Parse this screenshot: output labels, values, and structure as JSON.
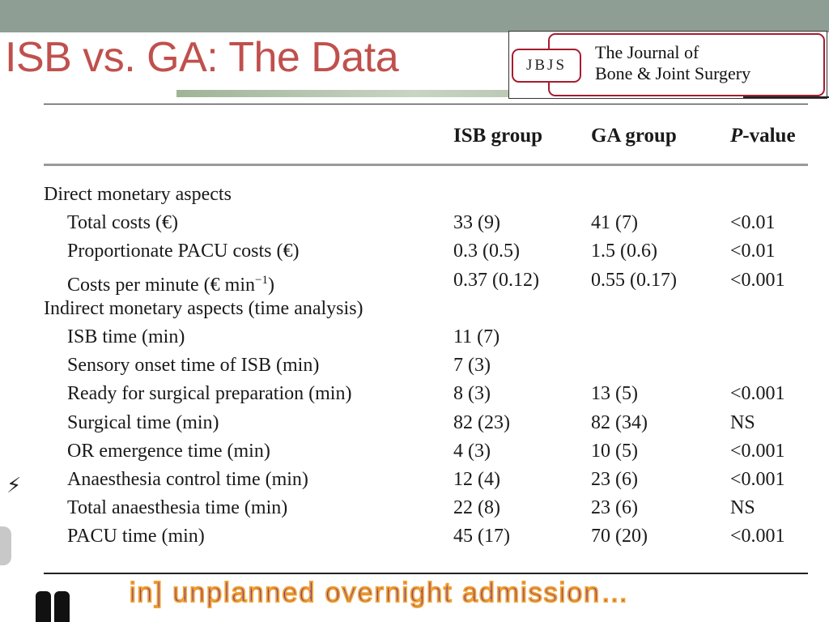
{
  "slide": {
    "title": "ISB vs. GA: The Data",
    "colors": {
      "title": "#c0504d",
      "top_bar": "#8e9e95",
      "logo_red": "#a61c2e",
      "caption": "#7030a0"
    }
  },
  "journal_logo": {
    "badge": "JBJS",
    "name_line1": "The Journal of",
    "name_line2": "Bone & Joint Surgery"
  },
  "table": {
    "headers": {
      "isb": "ISB group",
      "ga": "GA group",
      "p_italic": "P",
      "p_rest": "-value"
    },
    "rows": [
      {
        "label": "Direct monetary aspects",
        "isb": "",
        "ga": "",
        "p": "",
        "section": true
      },
      {
        "label": "Total costs (€)",
        "isb": "33 (9)",
        "ga": "41 (7)",
        "p": "<0.01"
      },
      {
        "label": "Proportionate PACU costs (€)",
        "isb": "0.3 (0.5)",
        "ga": "1.5 (0.6)",
        "p": "<0.01"
      },
      {
        "label": "Costs per minute (€ min",
        "sup": "−1",
        "label_end": ")",
        "isb": "0.37 (0.12)",
        "ga": "0.55 (0.17)",
        "p": "<0.001"
      },
      {
        "label": "Indirect monetary aspects (time analysis)",
        "isb": "",
        "ga": "",
        "p": "",
        "section": true
      },
      {
        "label": "ISB time (min)",
        "isb": "11 (7)",
        "ga": "",
        "p": ""
      },
      {
        "label": "Sensory onset time of ISB (min)",
        "isb": "7 (3)",
        "ga": "",
        "p": ""
      },
      {
        "label": "Ready for surgical preparation (min)",
        "isb": "8 (3)",
        "ga": "13 (5)",
        "p": "<0.001"
      },
      {
        "label": "Surgical time (min)",
        "isb": "82 (23)",
        "ga": "82 (34)",
        "p": "NS"
      },
      {
        "label": "OR emergence time (min)",
        "isb": "4 (3)",
        "ga": "10 (5)",
        "p": "<0.001"
      },
      {
        "label": "Anaesthesia control time (min)",
        "isb": "12 (4)",
        "ga": "23 (6)",
        "p": "<0.001"
      },
      {
        "label": "Total anaesthesia time (min)",
        "isb": "22 (8)",
        "ga": "23 (6)",
        "p": "NS"
      },
      {
        "label": "PACU time (min)",
        "isb": "45 (17)",
        "ga": "70 (20)",
        "p": "<0.001"
      }
    ]
  },
  "bottom_caption": "in] unplanned overnight admission…"
}
